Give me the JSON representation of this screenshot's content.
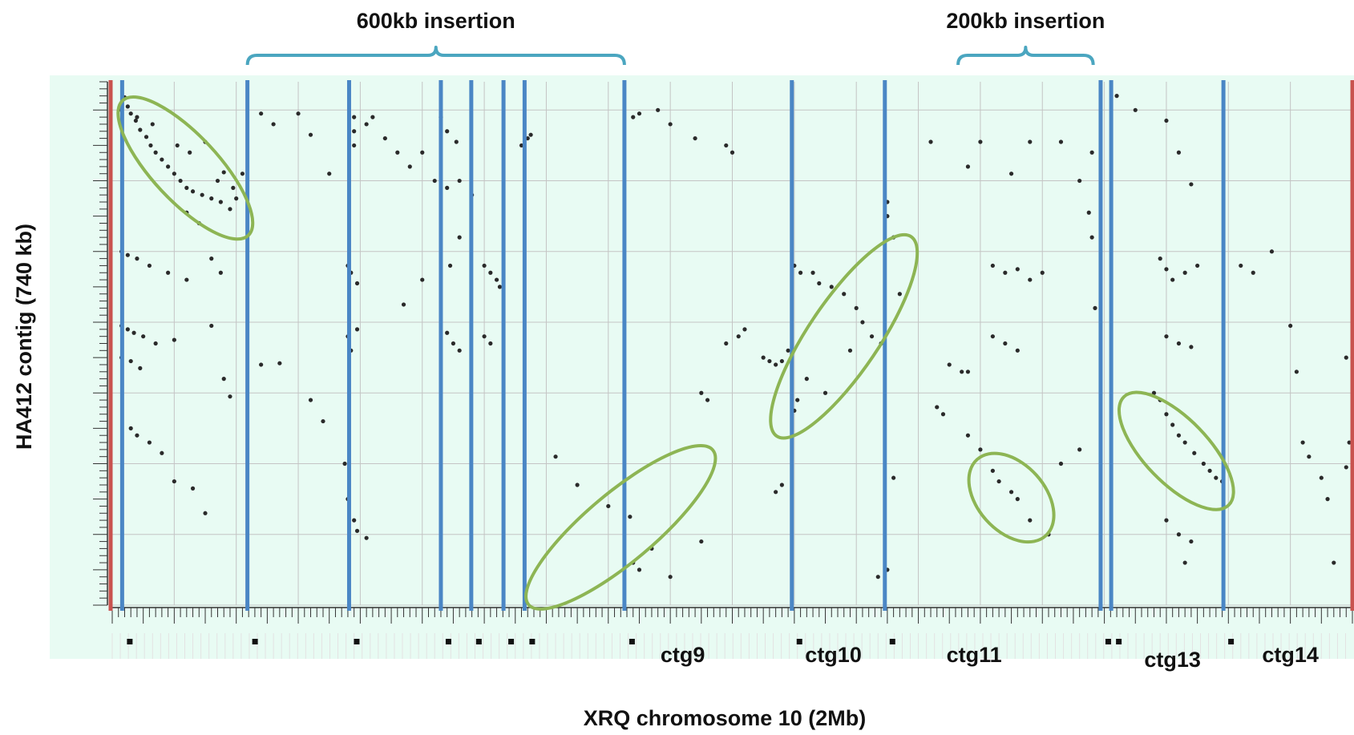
{
  "chart_data": {
    "type": "scatter",
    "title": "",
    "xlabel": "XRQ chromosome 10 (2Mb)",
    "ylabel": "HA412 contig (740 kb)",
    "xlim": [
      0,
      2000
    ],
    "ylim": [
      0,
      740
    ],
    "grid": true,
    "annotations": {
      "insertions": [
        {
          "label": "600kb insertion",
          "x_start": 218,
          "x_end": 826
        },
        {
          "label": "200kb insertion",
          "x_start": 1364,
          "x_end": 1582
        }
      ],
      "contigs": [
        {
          "label": "ctg9",
          "x": 920
        },
        {
          "label": "ctg10",
          "x": 1163
        },
        {
          "label": "ctg11",
          "x": 1390
        },
        {
          "label": "ctg13",
          "x": 1710
        },
        {
          "label": "ctg14",
          "x": 1900
        }
      ]
    },
    "contig_boundaries": [
      16,
      218,
      382,
      530,
      579,
      631,
      665,
      826,
      1096,
      1246,
      1594,
      1611,
      1792
    ],
    "ellipses": [
      {
        "cx": 118,
        "cy": 618,
        "rx": 115,
        "ry": 41,
        "angle": 47
      },
      {
        "cx": 820,
        "cy": 110,
        "rx": 150,
        "ry": 43,
        "angle": -40
      },
      {
        "cx": 1180,
        "cy": 380,
        "rx": 150,
        "ry": 44,
        "angle": -56
      },
      {
        "cx": 1450,
        "cy": 152,
        "rx": 64,
        "ry": 42,
        "angle": 48
      },
      {
        "cx": 1716,
        "cy": 218,
        "rx": 94,
        "ry": 40,
        "angle": 46
      }
    ],
    "series": [
      {
        "points": [
          [
            20,
            718
          ],
          [
            25,
            705
          ],
          [
            30,
            695
          ],
          [
            38,
            685
          ],
          [
            45,
            672
          ],
          [
            55,
            662
          ],
          [
            62,
            650
          ],
          [
            70,
            640
          ],
          [
            80,
            630
          ],
          [
            90,
            620
          ],
          [
            100,
            610
          ],
          [
            110,
            600
          ],
          [
            120,
            590
          ],
          [
            130,
            585
          ],
          [
            145,
            580
          ],
          [
            160,
            575
          ],
          [
            175,
            570
          ],
          [
            190,
            560
          ],
          [
            200,
            575
          ],
          [
            15,
            700
          ],
          [
            40,
            690
          ],
          [
            65,
            680
          ],
          [
            105,
            650
          ],
          [
            125,
            640
          ],
          [
            150,
            655
          ],
          [
            180,
            612
          ],
          [
            195,
            590
          ],
          [
            120,
            555
          ],
          [
            140,
            540
          ],
          [
            170,
            600
          ],
          [
            210,
            610
          ],
          [
            15,
            500
          ],
          [
            25,
            495
          ],
          [
            40,
            490
          ],
          [
            60,
            480
          ],
          [
            90,
            470
          ],
          [
            120,
            460
          ],
          [
            160,
            490
          ],
          [
            175,
            470
          ],
          [
            15,
            395
          ],
          [
            25,
            390
          ],
          [
            35,
            385
          ],
          [
            50,
            380
          ],
          [
            70,
            370
          ],
          [
            100,
            375
          ],
          [
            160,
            395
          ],
          [
            15,
            350
          ],
          [
            30,
            345
          ],
          [
            45,
            335
          ],
          [
            180,
            320
          ],
          [
            190,
            295
          ],
          [
            30,
            250
          ],
          [
            40,
            240
          ],
          [
            60,
            230
          ],
          [
            80,
            215
          ],
          [
            100,
            175
          ],
          [
            130,
            165
          ],
          [
            150,
            130
          ],
          [
            240,
            695
          ],
          [
            260,
            680
          ],
          [
            300,
            695
          ],
          [
            320,
            665
          ],
          [
            350,
            610
          ],
          [
            240,
            340
          ],
          [
            270,
            342
          ],
          [
            320,
            290
          ],
          [
            340,
            260
          ],
          [
            410,
            680
          ],
          [
            420,
            690
          ],
          [
            440,
            660
          ],
          [
            460,
            640
          ],
          [
            480,
            620
          ],
          [
            500,
            640
          ],
          [
            520,
            600
          ],
          [
            540,
            590
          ],
          [
            560,
            600
          ],
          [
            580,
            580
          ],
          [
            500,
            460
          ],
          [
            470,
            425
          ],
          [
            390,
            690
          ],
          [
            390,
            670
          ],
          [
            390,
            650
          ],
          [
            380,
            480
          ],
          [
            385,
            470
          ],
          [
            395,
            455
          ],
          [
            380,
            380
          ],
          [
            395,
            390
          ],
          [
            385,
            360
          ],
          [
            375,
            200
          ],
          [
            380,
            150
          ],
          [
            390,
            120
          ],
          [
            395,
            105
          ],
          [
            410,
            95
          ],
          [
            530,
            690
          ],
          [
            540,
            670
          ],
          [
            555,
            655
          ],
          [
            560,
            520
          ],
          [
            545,
            480
          ],
          [
            540,
            385
          ],
          [
            550,
            370
          ],
          [
            560,
            360
          ],
          [
            600,
            480
          ],
          [
            610,
            470
          ],
          [
            620,
            460
          ],
          [
            625,
            450
          ],
          [
            600,
            380
          ],
          [
            610,
            370
          ],
          [
            660,
            650
          ],
          [
            670,
            660
          ],
          [
            675,
            665
          ],
          [
            715,
            210
          ],
          [
            750,
            170
          ],
          [
            800,
            140
          ],
          [
            835,
            125
          ],
          [
            840,
            690
          ],
          [
            850,
            695
          ],
          [
            880,
            700
          ],
          [
            900,
            680
          ],
          [
            940,
            660
          ],
          [
            990,
            650
          ],
          [
            1000,
            640
          ],
          [
            840,
            60
          ],
          [
            850,
            50
          ],
          [
            870,
            80
          ],
          [
            900,
            40
          ],
          [
            950,
            90
          ],
          [
            1050,
            350
          ],
          [
            1060,
            345
          ],
          [
            1070,
            340
          ],
          [
            1080,
            345
          ],
          [
            1090,
            360
          ],
          [
            1100,
            480
          ],
          [
            1110,
            470
          ],
          [
            1080,
            170
          ],
          [
            1070,
            160
          ],
          [
            950,
            300
          ],
          [
            960,
            290
          ],
          [
            990,
            370
          ],
          [
            1010,
            380
          ],
          [
            1020,
            390
          ],
          [
            1130,
            470
          ],
          [
            1140,
            455
          ],
          [
            1160,
            450
          ],
          [
            1180,
            440
          ],
          [
            1200,
            420
          ],
          [
            1210,
            400
          ],
          [
            1225,
            380
          ],
          [
            1240,
            370
          ],
          [
            1190,
            360
          ],
          [
            1150,
            300
          ],
          [
            1120,
            320
          ],
          [
            1105,
            290
          ],
          [
            1100,
            275
          ],
          [
            1250,
            550
          ],
          [
            1250,
            570
          ],
          [
            1260,
            520
          ],
          [
            1270,
            440
          ],
          [
            1260,
            180
          ],
          [
            1250,
            50
          ],
          [
            1235,
            40
          ],
          [
            1320,
            655
          ],
          [
            1380,
            620
          ],
          [
            1400,
            655
          ],
          [
            1450,
            610
          ],
          [
            1480,
            655
          ],
          [
            1530,
            655
          ],
          [
            1560,
            600
          ],
          [
            1580,
            640
          ],
          [
            1380,
            240
          ],
          [
            1400,
            220
          ],
          [
            1420,
            190
          ],
          [
            1430,
            175
          ],
          [
            1450,
            160
          ],
          [
            1460,
            150
          ],
          [
            1480,
            120
          ],
          [
            1510,
            100
          ],
          [
            1530,
            200
          ],
          [
            1560,
            220
          ],
          [
            1420,
            480
          ],
          [
            1440,
            470
          ],
          [
            1460,
            475
          ],
          [
            1480,
            460
          ],
          [
            1500,
            470
          ],
          [
            1420,
            380
          ],
          [
            1440,
            370
          ],
          [
            1460,
            360
          ],
          [
            1350,
            340
          ],
          [
            1370,
            330
          ],
          [
            1380,
            330
          ],
          [
            1330,
            280
          ],
          [
            1340,
            270
          ],
          [
            1575,
            555
          ],
          [
            1580,
            520
          ],
          [
            1585,
            420
          ],
          [
            1620,
            720
          ],
          [
            1650,
            700
          ],
          [
            1700,
            685
          ],
          [
            1720,
            640
          ],
          [
            1740,
            595
          ],
          [
            1690,
            490
          ],
          [
            1700,
            475
          ],
          [
            1710,
            460
          ],
          [
            1730,
            470
          ],
          [
            1750,
            480
          ],
          [
            1700,
            380
          ],
          [
            1720,
            370
          ],
          [
            1740,
            365
          ],
          [
            1680,
            300
          ],
          [
            1690,
            290
          ],
          [
            1700,
            270
          ],
          [
            1710,
            255
          ],
          [
            1720,
            240
          ],
          [
            1730,
            230
          ],
          [
            1745,
            215
          ],
          [
            1760,
            200
          ],
          [
            1770,
            190
          ],
          [
            1780,
            180
          ],
          [
            1790,
            175
          ],
          [
            1700,
            120
          ],
          [
            1720,
            100
          ],
          [
            1740,
            90
          ],
          [
            1730,
            60
          ],
          [
            1820,
            480
          ],
          [
            1840,
            470
          ],
          [
            1870,
            500
          ],
          [
            1900,
            395
          ],
          [
            1910,
            330
          ],
          [
            1920,
            230
          ],
          [
            1930,
            210
          ],
          [
            1950,
            180
          ],
          [
            1960,
            150
          ],
          [
            1970,
            60
          ],
          [
            1990,
            350
          ],
          [
            1995,
            230
          ],
          [
            1990,
            195
          ]
        ]
      }
    ]
  }
}
